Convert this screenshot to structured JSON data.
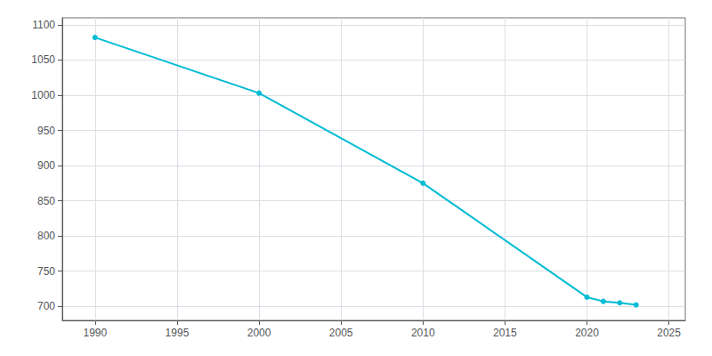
{
  "chart_data": {
    "type": "line",
    "x": [
      1990,
      2000,
      2010,
      2020,
      2021,
      2022,
      2023
    ],
    "values": [
      1082,
      1003,
      875,
      713,
      707,
      705,
      702
    ],
    "color": "#00bcd4",
    "marker": "circle",
    "xlim": [
      1988,
      2026
    ],
    "xticks": [
      1990,
      1995,
      2000,
      2005,
      2010,
      2015,
      2020,
      2025
    ],
    "ylim": [
      680,
      1110
    ],
    "yticks": [
      700,
      750,
      800,
      850,
      900,
      950,
      1000,
      1050,
      1100
    ],
    "grid": true
  }
}
